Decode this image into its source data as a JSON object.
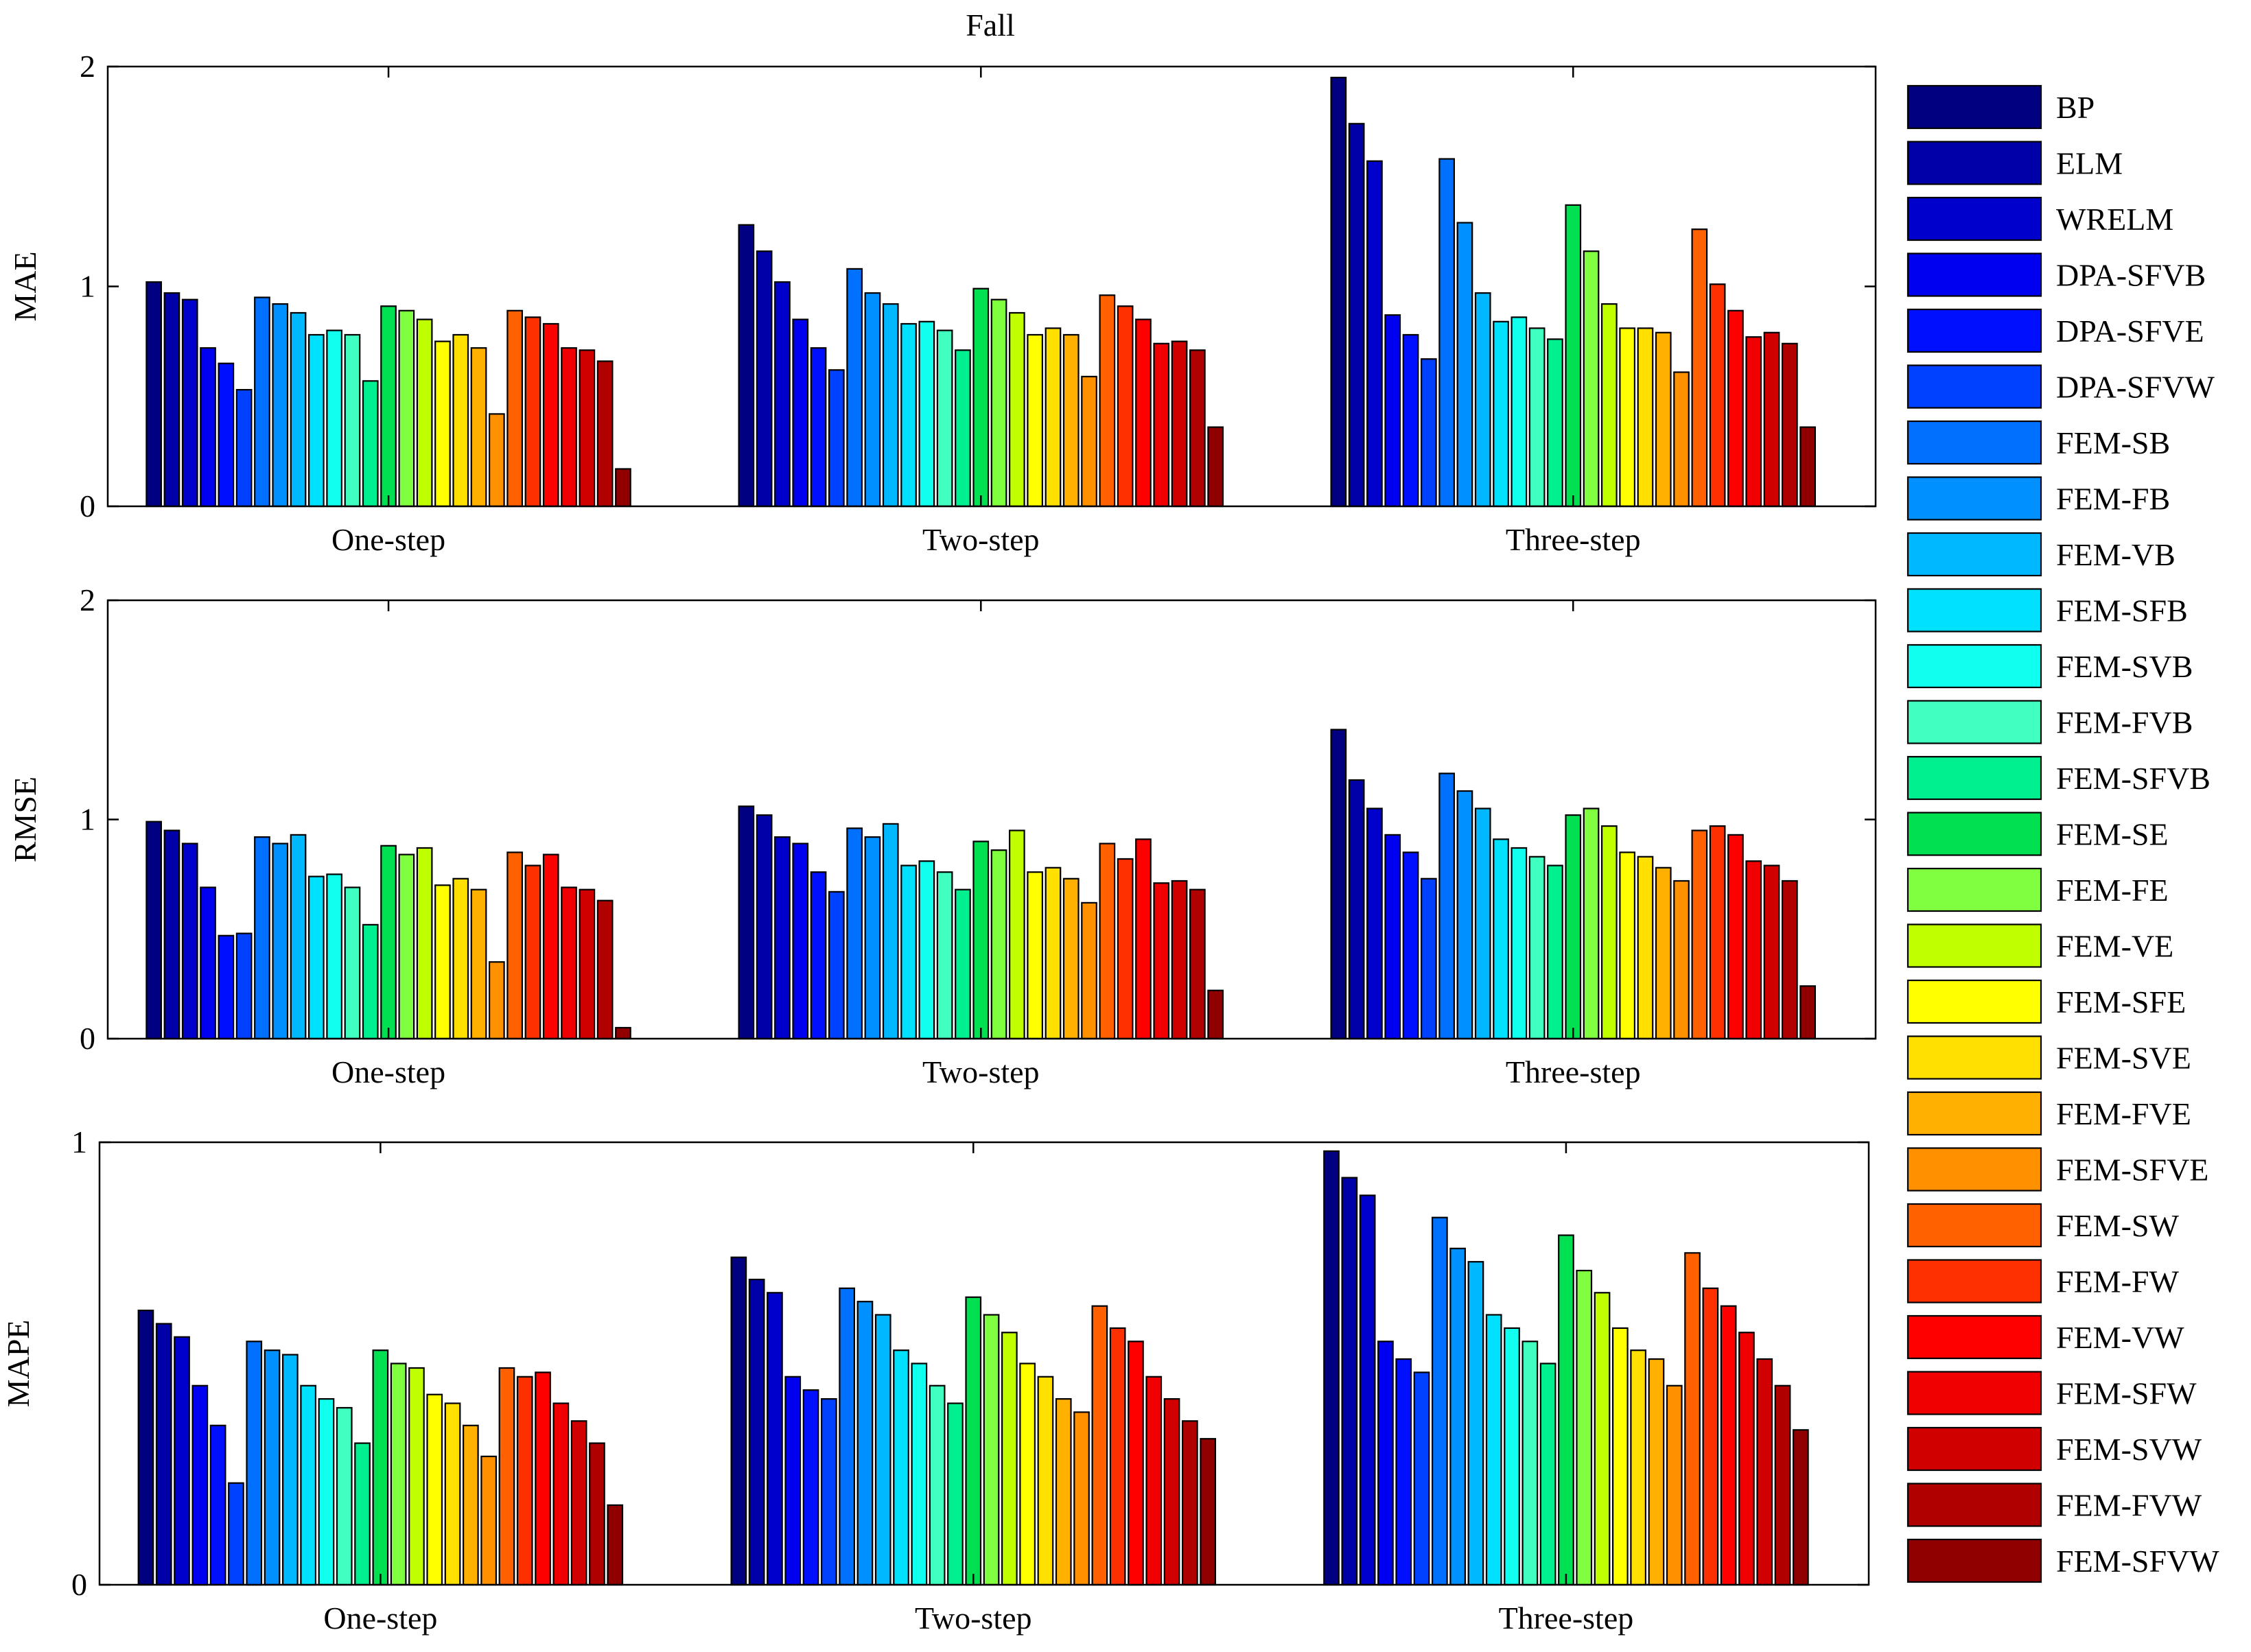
{
  "title": "Fall",
  "categories": [
    "One-step",
    "Two-step",
    "Three-step"
  ],
  "series_names": [
    "BP",
    "ELM",
    "WRELM",
    "DPA-SFVB",
    "DPA-SFVE",
    "DPA-SFVW",
    "FEM-SB",
    "FEM-FB",
    "FEM-VB",
    "FEM-SFB",
    "FEM-SVB",
    "FEM-FVB",
    "FEM-SFVB",
    "FEM-SE",
    "FEM-FE",
    "FEM-VE",
    "FEM-SFE",
    "FEM-SVE",
    "FEM-FVE",
    "FEM-SFVE",
    "FEM-SW",
    "FEM-FW",
    "FEM-VW",
    "FEM-SFW",
    "FEM-SVW",
    "FEM-FVW",
    "FEM-SFVW"
  ],
  "colors": [
    "#000080",
    "#0000a8",
    "#0000cc",
    "#0000f0",
    "#0010ff",
    "#0040ff",
    "#0070ff",
    "#0090ff",
    "#00b8ff",
    "#00e0ff",
    "#10ffef",
    "#40ffc0",
    "#00f090",
    "#00e050",
    "#80ff40",
    "#c0ff00",
    "#ffff00",
    "#ffe000",
    "#ffb000",
    "#ff9000",
    "#ff6000",
    "#ff3000",
    "#ff0000",
    "#f00000",
    "#d00000",
    "#b00000",
    "#900000"
  ],
  "chart_data": [
    {
      "type": "bar",
      "ylabel": "MAE",
      "ylim": [
        0,
        2
      ],
      "yticks": [
        "0",
        "1",
        "2"
      ],
      "categories": [
        "One-step",
        "Two-step",
        "Three-step"
      ],
      "values": [
        [
          1.02,
          0.97,
          0.94,
          0.72,
          0.65,
          0.53,
          0.95,
          0.92,
          0.88,
          0.78,
          0.8,
          0.78,
          0.57,
          0.91,
          0.89,
          0.85,
          0.75,
          0.78,
          0.72,
          0.42,
          0.89,
          0.86,
          0.83,
          0.72,
          0.71,
          0.66,
          0.17
        ],
        [
          1.28,
          1.16,
          1.02,
          0.85,
          0.72,
          0.62,
          1.08,
          0.97,
          0.92,
          0.83,
          0.84,
          0.8,
          0.71,
          0.99,
          0.94,
          0.88,
          0.78,
          0.81,
          0.78,
          0.59,
          0.96,
          0.91,
          0.85,
          0.74,
          0.75,
          0.71,
          0.36
        ],
        [
          1.95,
          1.74,
          1.57,
          0.87,
          0.78,
          0.67,
          1.58,
          1.29,
          0.97,
          0.84,
          0.86,
          0.81,
          0.76,
          1.37,
          1.16,
          0.92,
          0.81,
          0.81,
          0.79,
          0.61,
          1.26,
          1.01,
          0.89,
          0.77,
          0.79,
          0.74,
          0.36
        ]
      ]
    },
    {
      "type": "bar",
      "ylabel": "RMSE",
      "ylim": [
        0,
        2
      ],
      "yticks": [
        "0",
        "1",
        "2"
      ],
      "categories": [
        "One-step",
        "Two-step",
        "Three-step"
      ],
      "values": [
        [
          0.99,
          0.95,
          0.89,
          0.69,
          0.47,
          0.48,
          0.92,
          0.89,
          0.93,
          0.74,
          0.75,
          0.69,
          0.52,
          0.88,
          0.84,
          0.87,
          0.7,
          0.73,
          0.68,
          0.35,
          0.85,
          0.79,
          0.84,
          0.69,
          0.68,
          0.63,
          0.05
        ],
        [
          1.06,
          1.02,
          0.92,
          0.89,
          0.76,
          0.67,
          0.96,
          0.92,
          0.98,
          0.79,
          0.81,
          0.76,
          0.68,
          0.9,
          0.86,
          0.95,
          0.76,
          0.78,
          0.73,
          0.62,
          0.89,
          0.82,
          0.91,
          0.71,
          0.72,
          0.68,
          0.22
        ],
        [
          1.41,
          1.18,
          1.05,
          0.93,
          0.85,
          0.73,
          1.21,
          1.13,
          1.05,
          0.91,
          0.87,
          0.83,
          0.79,
          1.02,
          1.05,
          0.97,
          0.85,
          0.83,
          0.78,
          0.72,
          0.95,
          0.97,
          0.93,
          0.81,
          0.79,
          0.72,
          0.24
        ]
      ]
    },
    {
      "type": "bar",
      "ylabel": "MAPE",
      "ylim": [
        0,
        1
      ],
      "yticks": [
        "0",
        "1"
      ],
      "categories": [
        "One-step",
        "Two-step",
        "Three-step"
      ],
      "values": [
        [
          0.62,
          0.59,
          0.56,
          0.45,
          0.36,
          0.23,
          0.55,
          0.53,
          0.52,
          0.45,
          0.42,
          0.4,
          0.32,
          0.53,
          0.5,
          0.49,
          0.43,
          0.41,
          0.36,
          0.29,
          0.49,
          0.47,
          0.48,
          0.41,
          0.37,
          0.32,
          0.18
        ],
        [
          0.74,
          0.69,
          0.66,
          0.47,
          0.44,
          0.42,
          0.67,
          0.64,
          0.61,
          0.53,
          0.5,
          0.45,
          0.41,
          0.65,
          0.61,
          0.57,
          0.5,
          0.47,
          0.42,
          0.39,
          0.63,
          0.58,
          0.55,
          0.47,
          0.42,
          0.37,
          0.33
        ],
        [
          0.98,
          0.92,
          0.88,
          0.55,
          0.51,
          0.48,
          0.83,
          0.76,
          0.73,
          0.61,
          0.58,
          0.55,
          0.5,
          0.79,
          0.71,
          0.66,
          0.58,
          0.53,
          0.51,
          0.45,
          0.75,
          0.67,
          0.63,
          0.57,
          0.51,
          0.45,
          0.35
        ]
      ]
    }
  ]
}
